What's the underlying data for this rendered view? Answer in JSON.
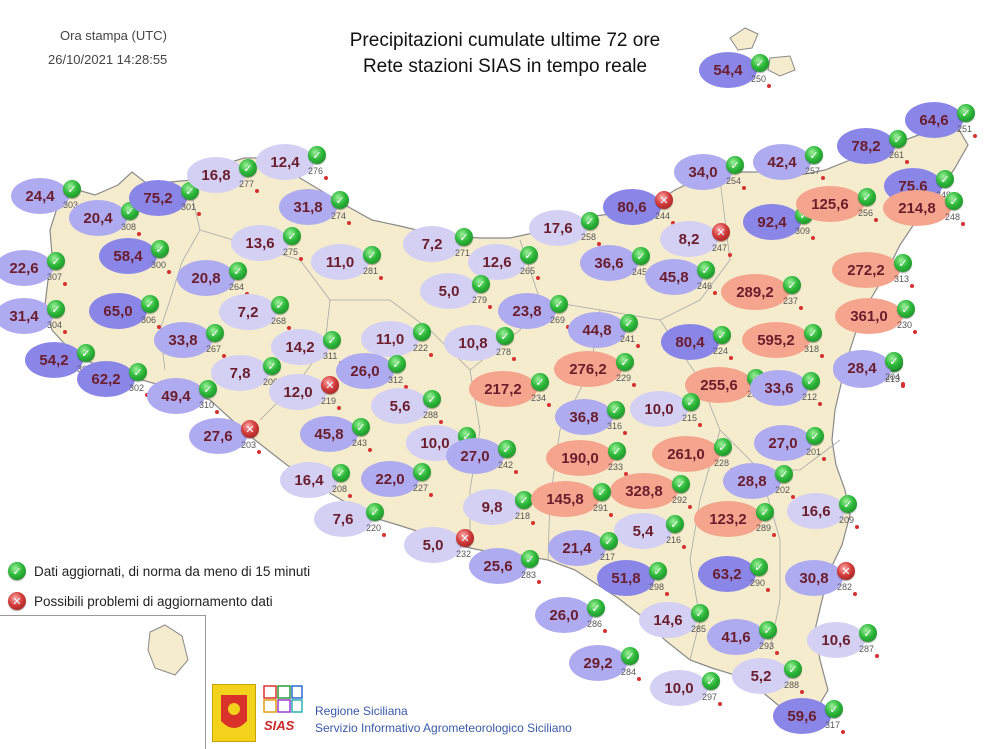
{
  "header": {
    "print_time_label": "Ora stampa (UTC)",
    "print_time_value": "26/10/2021 14:28:55",
    "title_line1": "Precipitazioni cumulate ultime 72 ore",
    "title_line2": "Rete stazioni SIAS in tempo reale"
  },
  "legend": {
    "ok_label": "Dati aggiornati, di norma da meno di 15 minuti",
    "error_label": "Possibili problemi di aggiornamento dati",
    "ok_icon": "green-check-icon",
    "error_icon": "red-error-icon"
  },
  "colors": {
    "land": "#f5ebcd",
    "coast": "#8a8a8a",
    "low": "#c9c6ef",
    "medium": "#9a97ea",
    "high": "#7d78e6",
    "very_high": "#f5a48e",
    "value_text": "#6b1d2c"
  },
  "footer": {
    "org_line1": "Regione Siciliana",
    "org_line2": "Servizio Informativo Agrometeorologico Siciliano",
    "logo_text": "SIAS"
  },
  "stations": [
    {
      "value": "54,4",
      "id": "250",
      "status": "ok"
    },
    {
      "value": "24,4",
      "id": "303",
      "status": "ok"
    },
    {
      "value": "20,4",
      "id": "308",
      "status": "ok"
    },
    {
      "value": "75,2",
      "id": "301",
      "status": "ok"
    },
    {
      "value": "16,8",
      "id": "277",
      "status": "ok"
    },
    {
      "value": "12,4",
      "id": "276",
      "status": "ok"
    },
    {
      "value": "31,8",
      "id": "274",
      "status": "ok"
    },
    {
      "value": "22,6",
      "id": "307",
      "status": "ok"
    },
    {
      "value": "58,4",
      "id": "300",
      "status": "ok"
    },
    {
      "value": "13,6",
      "id": "275",
      "status": "ok"
    },
    {
      "value": "20,8",
      "id": "264",
      "status": "ok"
    },
    {
      "value": "11,0",
      "id": "281",
      "status": "ok"
    },
    {
      "value": "7,2",
      "id": "271",
      "status": "ok"
    },
    {
      "value": "12,6",
      "id": "265",
      "status": "ok"
    },
    {
      "value": "17,6",
      "id": "258",
      "status": "ok"
    },
    {
      "value": "80,6",
      "id": "244",
      "status": "err"
    },
    {
      "value": "34,0",
      "id": "254",
      "status": "ok"
    },
    {
      "value": "42,4",
      "id": "257",
      "status": "ok"
    },
    {
      "value": "78,2",
      "id": "261",
      "status": "ok"
    },
    {
      "value": "64,6",
      "id": "251",
      "status": "ok"
    },
    {
      "value": "75,6",
      "id": "249",
      "status": "ok"
    },
    {
      "value": "92,4",
      "id": "309",
      "status": "ok"
    },
    {
      "value": "125,6",
      "id": "256",
      "status": "ok"
    },
    {
      "value": "214,8",
      "id": "248",
      "status": "ok"
    },
    {
      "value": "8,2",
      "id": "247",
      "status": "err"
    },
    {
      "value": "36,6",
      "id": "245",
      "status": "ok"
    },
    {
      "value": "45,8",
      "id": "246",
      "status": "ok"
    },
    {
      "value": "31,4",
      "id": "304",
      "status": "ok"
    },
    {
      "value": "65,0",
      "id": "306",
      "status": "ok"
    },
    {
      "value": "7,2",
      "id": "268",
      "status": "ok"
    },
    {
      "value": "5,0",
      "id": "279",
      "status": "ok"
    },
    {
      "value": "23,8",
      "id": "269",
      "status": "ok"
    },
    {
      "value": "289,2",
      "id": "237",
      "status": "ok"
    },
    {
      "value": "272,2",
      "id": "313",
      "status": "ok"
    },
    {
      "value": "361,0",
      "id": "230",
      "status": "ok"
    },
    {
      "value": "54,2",
      "id": "305",
      "status": "ok"
    },
    {
      "value": "62,2",
      "id": "302",
      "status": "ok"
    },
    {
      "value": "33,8",
      "id": "267",
      "status": "ok"
    },
    {
      "value": "14,2",
      "id": "311",
      "status": "ok"
    },
    {
      "value": "11,0",
      "id": "222",
      "status": "ok"
    },
    {
      "value": "10,8",
      "id": "278",
      "status": "ok"
    },
    {
      "value": "44,8",
      "id": "241",
      "status": "ok"
    },
    {
      "value": "80,4",
      "id": "224",
      "status": "ok"
    },
    {
      "value": "595,2",
      "id": "318",
      "status": "ok"
    },
    {
      "value": "42,4",
      "id": "213",
      "status": "ok"
    },
    {
      "value": "49,4",
      "id": "310",
      "status": "ok"
    },
    {
      "value": "7,8",
      "id": "206",
      "status": "ok"
    },
    {
      "value": "26,0",
      "id": "312",
      "status": "ok"
    },
    {
      "value": "276,2",
      "id": "229",
      "status": "ok"
    },
    {
      "value": "28,4",
      "id": "204",
      "status": "ok"
    },
    {
      "value": "12,0",
      "id": "219",
      "status": "err"
    },
    {
      "value": "5,6",
      "id": "288",
      "status": "ok"
    },
    {
      "value": "217,2",
      "id": "234",
      "status": "ok"
    },
    {
      "value": "255,6",
      "id": "235",
      "status": "ok"
    },
    {
      "value": "33,6",
      "id": "212",
      "status": "ok"
    },
    {
      "value": "27,6",
      "id": "203",
      "status": "err"
    },
    {
      "value": "45,8",
      "id": "243",
      "status": "ok"
    },
    {
      "value": "36,8",
      "id": "316",
      "status": "ok"
    },
    {
      "value": "10,0",
      "id": "215",
      "status": "ok"
    },
    {
      "value": "10,0",
      "id": "214",
      "status": "ok"
    },
    {
      "value": "27,0",
      "id": "242",
      "status": "ok"
    },
    {
      "value": "190,0",
      "id": "233",
      "status": "ok"
    },
    {
      "value": "261,0",
      "id": "228",
      "status": "ok"
    },
    {
      "value": "27,0",
      "id": "201",
      "status": "ok"
    },
    {
      "value": "16,4",
      "id": "208",
      "status": "ok"
    },
    {
      "value": "22,0",
      "id": "227",
      "status": "ok"
    },
    {
      "value": "328,8",
      "id": "292",
      "status": "ok"
    },
    {
      "value": "28,8",
      "id": "202",
      "status": "ok"
    },
    {
      "value": "7,6",
      "id": "220",
      "status": "ok"
    },
    {
      "value": "9,8",
      "id": "218",
      "status": "ok"
    },
    {
      "value": "145,8",
      "id": "291",
      "status": "ok"
    },
    {
      "value": "123,2",
      "id": "289",
      "status": "ok"
    },
    {
      "value": "16,6",
      "id": "209",
      "status": "ok"
    },
    {
      "value": "5,0",
      "id": "232",
      "status": "err"
    },
    {
      "value": "5,4",
      "id": "216",
      "status": "ok"
    },
    {
      "value": "21,4",
      "id": "217",
      "status": "ok"
    },
    {
      "value": "25,6",
      "id": "283",
      "status": "ok"
    },
    {
      "value": "51,8",
      "id": "298",
      "status": "ok"
    },
    {
      "value": "63,2",
      "id": "290",
      "status": "ok"
    },
    {
      "value": "30,8",
      "id": "282",
      "status": "err"
    },
    {
      "value": "26,0",
      "id": "286",
      "status": "ok"
    },
    {
      "value": "14,6",
      "id": "285",
      "status": "ok"
    },
    {
      "value": "41,6",
      "id": "293",
      "status": "ok"
    },
    {
      "value": "10,6",
      "id": "287",
      "status": "ok"
    },
    {
      "value": "29,2",
      "id": "284",
      "status": "ok"
    },
    {
      "value": "5,2",
      "id": "288",
      "status": "ok"
    },
    {
      "value": "10,0",
      "id": "297",
      "status": "ok"
    },
    {
      "value": "59,6",
      "id": "317",
      "status": "ok"
    }
  ]
}
